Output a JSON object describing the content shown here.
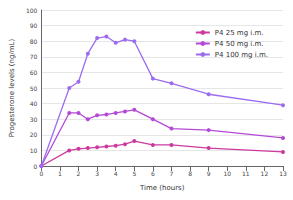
{
  "chart_data": {
    "type": "line",
    "x_label": "Time (hours)",
    "y_label": "Progesterone levels (ng/mL)",
    "xlim": [
      0,
      13
    ],
    "xticks": [
      0,
      1,
      2,
      3,
      4,
      5,
      6,
      7,
      8,
      9,
      10,
      11,
      12,
      13
    ],
    "ylim": [
      0,
      100
    ],
    "yticks": [
      0,
      10,
      20,
      30,
      40,
      50,
      60,
      70,
      80,
      90,
      100
    ],
    "grid": true,
    "legend": "upper right",
    "marker": "circle",
    "series": [
      {
        "name": "P4 25 mg i.m.",
        "color": "#cc3a9e",
        "x": [
          0,
          1.5,
          2,
          2.5,
          3,
          3.5,
          4,
          4.5,
          5,
          6,
          7,
          9,
          13
        ],
        "values": [
          0,
          10,
          11,
          11.5,
          12,
          12.5,
          13,
          14,
          16,
          13.5,
          13.5,
          11.5,
          9
        ]
      },
      {
        "name": "P4 50 mg i.m.",
        "color": "#b449d8",
        "x": [
          0,
          1.5,
          2,
          2.5,
          3,
          3.5,
          4,
          4.5,
          5,
          6,
          7,
          9,
          13
        ],
        "values": [
          0,
          34,
          34,
          30,
          32.5,
          33,
          34,
          35,
          36,
          30,
          24,
          23,
          18
        ]
      },
      {
        "name": "P4 100 mg i.m.",
        "color": "#9c6cf0",
        "x": [
          0,
          1.5,
          2,
          2.5,
          3,
          3.5,
          4,
          4.5,
          5,
          6,
          7,
          9,
          13
        ],
        "values": [
          0,
          50,
          54,
          72,
          82,
          83,
          79,
          81,
          80,
          56,
          53,
          46,
          39
        ]
      }
    ]
  }
}
